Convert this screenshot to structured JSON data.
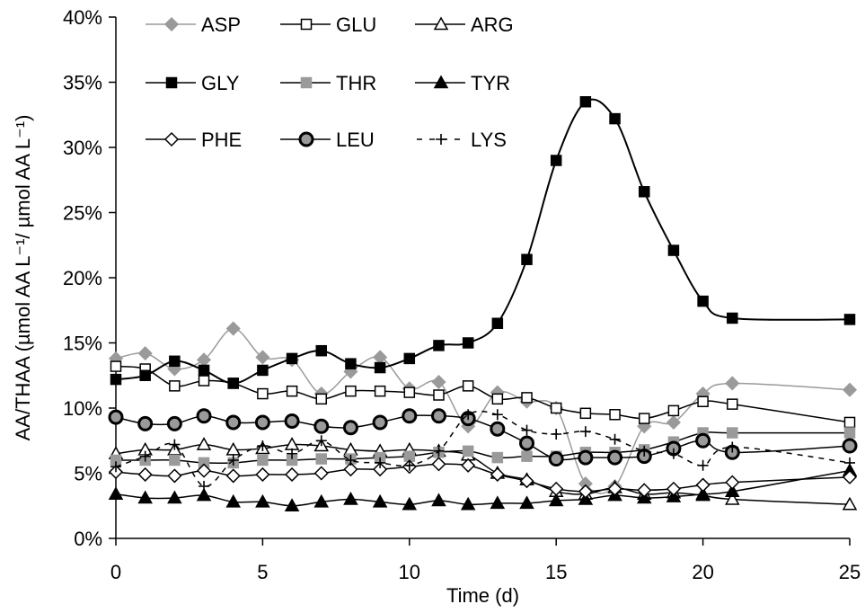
{
  "chart_data": {
    "type": "line",
    "xlabel": "Time (d)",
    "ylabel": "AA/THAA (µmol AA L⁻¹/ µmol AA L⁻¹)",
    "xlim": [
      0,
      25
    ],
    "ylim": [
      0,
      40
    ],
    "x_ticks": [
      0,
      5,
      10,
      15,
      20,
      25
    ],
    "y_ticks": [
      0,
      5,
      10,
      15,
      20,
      25,
      30,
      35,
      40
    ],
    "y_tick_labels": [
      "0%",
      "5%",
      "10%",
      "15%",
      "20%",
      "25%",
      "30%",
      "35%",
      "40%"
    ],
    "grid": false,
    "legend_position": "top-left, inside plot, 3 columns",
    "series": [
      {
        "name": "ASP",
        "marker": "diamond",
        "marker_fill": "#9a9a9a",
        "marker_stroke": "#9a9a9a",
        "line_color": "#9a9a9a",
        "dash": "solid",
        "x": [
          0,
          1,
          2,
          3,
          4,
          5,
          6,
          7,
          8,
          9,
          10,
          11,
          12,
          13,
          14,
          15,
          16,
          17,
          18,
          19,
          20,
          21,
          25
        ],
        "y": [
          13.8,
          14.2,
          13.0,
          13.7,
          16.1,
          13.9,
          13.7,
          11.1,
          12.8,
          13.9,
          11.5,
          12.0,
          8.6,
          11.2,
          10.5,
          10.0,
          4.2,
          4.0,
          8.6,
          8.9,
          11.1,
          11.9,
          11.4
        ]
      },
      {
        "name": "GLU",
        "marker": "square",
        "marker_fill": "#ffffff",
        "marker_stroke": "#000000",
        "line_color": "#000000",
        "dash": "solid",
        "x": [
          0,
          1,
          2,
          3,
          4,
          5,
          6,
          7,
          8,
          9,
          10,
          11,
          12,
          13,
          14,
          15,
          16,
          17,
          18,
          19,
          20,
          21,
          25
        ],
        "y": [
          13.2,
          13.0,
          11.7,
          12.1,
          11.9,
          11.1,
          11.3,
          10.7,
          11.3,
          11.3,
          11.2,
          11.0,
          11.7,
          10.7,
          10.8,
          10.0,
          9.6,
          9.5,
          9.2,
          9.8,
          10.5,
          10.3,
          8.9
        ]
      },
      {
        "name": "ARG",
        "marker": "triangle",
        "marker_fill": "#ffffff",
        "marker_stroke": "#000000",
        "line_color": "#000000",
        "dash": "solid",
        "x": [
          0,
          1,
          2,
          3,
          4,
          5,
          6,
          7,
          8,
          9,
          10,
          11,
          12,
          13,
          14,
          15,
          16,
          17,
          18,
          19,
          20,
          21,
          25
        ],
        "y": [
          6.5,
          6.8,
          6.8,
          7.2,
          6.8,
          6.9,
          7.2,
          7.1,
          6.8,
          6.7,
          6.8,
          6.7,
          6.4,
          5.0,
          4.5,
          3.6,
          3.4,
          3.9,
          3.4,
          3.5,
          3.3,
          3.0,
          2.6
        ]
      },
      {
        "name": "GLY",
        "marker": "square",
        "marker_fill": "#000000",
        "marker_stroke": "#000000",
        "line_color": "#000000",
        "dash": "solid",
        "x": [
          0,
          1,
          2,
          3,
          4,
          5,
          6,
          7,
          8,
          9,
          10,
          11,
          12,
          13,
          14,
          15,
          16,
          17,
          18,
          19,
          20,
          21,
          25
        ],
        "y": [
          12.2,
          12.5,
          13.6,
          12.9,
          11.9,
          12.9,
          13.8,
          14.4,
          13.4,
          13.1,
          13.8,
          14.8,
          15.0,
          16.5,
          21.4,
          29.0,
          33.5,
          32.2,
          26.6,
          22.1,
          18.2,
          16.9,
          16.8
        ]
      },
      {
        "name": "THR",
        "marker": "square",
        "marker_fill": "#9a9a9a",
        "marker_stroke": "#9a9a9a",
        "line_color": "#000000",
        "dash": "solid",
        "x": [
          0,
          1,
          2,
          3,
          4,
          5,
          6,
          7,
          8,
          9,
          10,
          11,
          12,
          13,
          14,
          15,
          16,
          17,
          18,
          19,
          20,
          21,
          25
        ],
        "y": [
          6.0,
          6.0,
          6.0,
          5.8,
          5.8,
          6.0,
          6.0,
          6.1,
          6.1,
          6.2,
          6.3,
          6.6,
          6.7,
          6.2,
          6.3,
          6.3,
          6.6,
          6.6,
          6.8,
          7.4,
          8.1,
          8.1,
          8.1
        ]
      },
      {
        "name": "TYR",
        "marker": "triangle",
        "marker_fill": "#000000",
        "marker_stroke": "#000000",
        "line_color": "#000000",
        "dash": "solid",
        "x": [
          0,
          1,
          2,
          3,
          4,
          5,
          6,
          7,
          8,
          9,
          10,
          11,
          12,
          13,
          14,
          15,
          16,
          17,
          18,
          19,
          20,
          21,
          25
        ],
        "y": [
          3.4,
          3.1,
          3.1,
          3.3,
          2.8,
          2.8,
          2.5,
          2.8,
          3.0,
          2.8,
          2.6,
          2.9,
          2.6,
          2.7,
          2.7,
          2.9,
          3.0,
          3.3,
          3.1,
          3.2,
          3.4,
          3.6,
          5.2
        ]
      },
      {
        "name": "PHE",
        "marker": "diamond",
        "marker_fill": "#ffffff",
        "marker_stroke": "#000000",
        "line_color": "#000000",
        "dash": "solid",
        "x": [
          0,
          1,
          2,
          3,
          4,
          5,
          6,
          7,
          8,
          9,
          10,
          11,
          12,
          13,
          14,
          15,
          16,
          17,
          18,
          19,
          20,
          21,
          25
        ],
        "y": [
          5.1,
          4.9,
          4.8,
          5.2,
          4.8,
          4.9,
          4.9,
          5.0,
          5.3,
          5.3,
          5.5,
          5.7,
          5.6,
          4.9,
          4.4,
          3.8,
          3.6,
          3.8,
          3.7,
          3.8,
          4.1,
          4.3,
          4.7
        ]
      },
      {
        "name": "LEU",
        "marker": "circle",
        "marker_fill": "#9a9a9a",
        "marker_stroke": "#000000",
        "line_color": "#000000",
        "dash": "solid",
        "x": [
          0,
          1,
          2,
          3,
          4,
          5,
          6,
          7,
          8,
          9,
          10,
          11,
          12,
          13,
          14,
          15,
          16,
          17,
          18,
          19,
          20,
          21,
          25
        ],
        "y": [
          9.3,
          8.8,
          8.8,
          9.4,
          8.9,
          8.9,
          9.0,
          8.6,
          8.5,
          8.9,
          9.4,
          9.4,
          9.2,
          8.4,
          7.3,
          6.1,
          6.2,
          6.2,
          6.3,
          6.9,
          7.5,
          6.6,
          7.1
        ]
      },
      {
        "name": "LYS",
        "marker": "plus",
        "marker_fill": "#000000",
        "marker_stroke": "#000000",
        "line_color": "#000000",
        "dash": "dashed",
        "x": [
          0,
          1,
          2,
          3,
          4,
          5,
          6,
          7,
          8,
          9,
          10,
          11,
          12,
          13,
          14,
          15,
          16,
          17,
          18,
          19,
          20,
          21,
          25
        ],
        "y": [
          5.5,
          6.3,
          7.2,
          4.0,
          6.0,
          7.1,
          6.5,
          7.5,
          6.0,
          5.8,
          5.6,
          6.7,
          9.5,
          9.5,
          8.3,
          8.0,
          8.2,
          7.6,
          6.7,
          6.5,
          5.6,
          7.0,
          5.8
        ]
      }
    ]
  }
}
